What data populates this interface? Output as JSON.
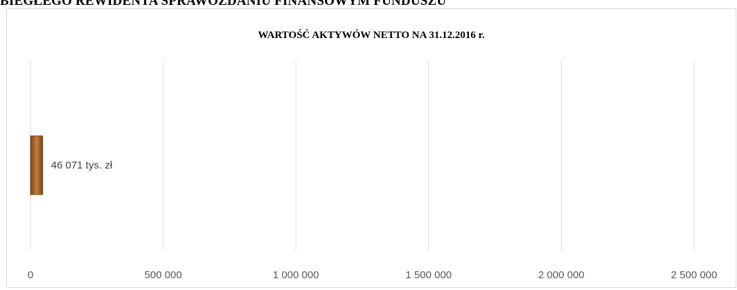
{
  "document": {
    "heading": "BIEGŁEGO REWIDENTA SPRAWOZDANIU FINANSOWYM FUNDUSZU"
  },
  "chart_data": {
    "type": "bar",
    "orientation": "horizontal",
    "title": "WARTOŚĆ AKTYWÓW NETTO NA 31.12.2016 r.",
    "categories": [
      ""
    ],
    "values": [
      46071
    ],
    "data_labels": [
      "46 071 tys. zł"
    ],
    "xlabel": "",
    "ylabel": "",
    "xlim": [
      0,
      2500000
    ],
    "x_ticks": [
      0,
      500000,
      1000000,
      1500000,
      2000000,
      2500000
    ],
    "x_tick_labels": [
      "0",
      "500 000",
      "1 000 000",
      "1 500 000",
      "2 000 000",
      "2 500 000"
    ],
    "grid": "vertical",
    "legend": "none",
    "bar_color": "#a8662a",
    "gridline_color": "#d9d9d9"
  }
}
